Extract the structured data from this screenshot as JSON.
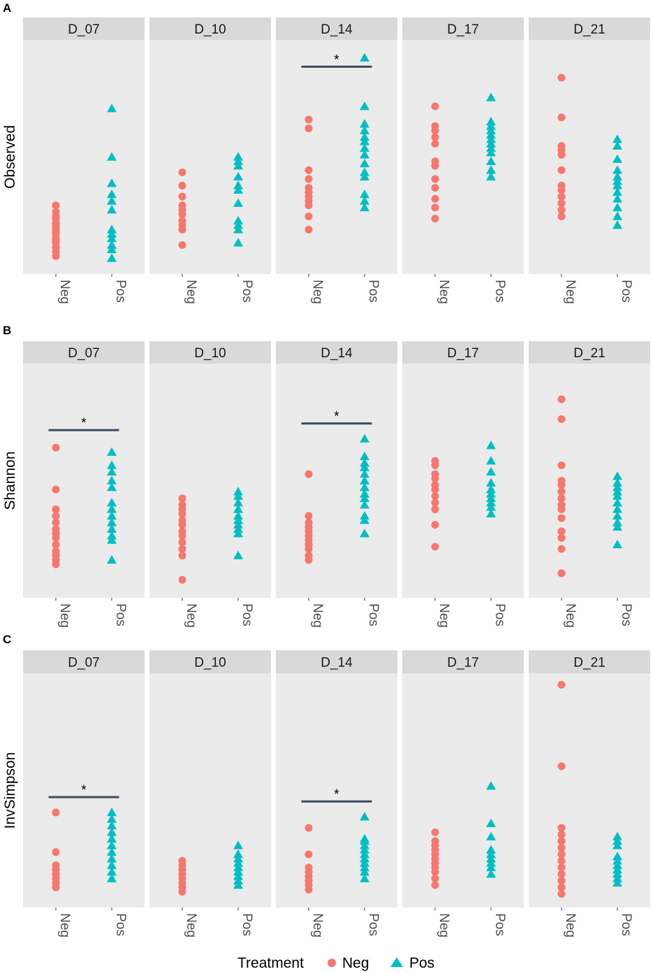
{
  "chart_data": {
    "type": "scatter",
    "groups": [
      "Neg",
      "Pos"
    ],
    "colors": {
      "Neg": "#F8766D",
      "Pos": "#00BFC4"
    },
    "legend": {
      "title": "Treatment",
      "entries": [
        "Neg",
        "Pos"
      ],
      "position": "bottom"
    },
    "facets": [
      "D_07",
      "D_10",
      "D_14",
      "D_17",
      "D_21"
    ],
    "rows": [
      {
        "label": "A",
        "ylabel": "Observed",
        "ylim": [
          0,
          100
        ],
        "significance": [
          {
            "facet": "D_14",
            "label": "*",
            "y": 91
          }
        ],
        "values": {
          "D_07": {
            "Neg": [
              28,
              25,
              23,
              22,
              20,
              19,
              18,
              17,
              16,
              15,
              13,
              12,
              11,
              9,
              7,
              5
            ],
            "Pos": [
              72,
              50,
              38,
              33,
              30,
              26,
              17,
              15,
              13,
              10,
              8,
              4
            ]
          },
          "D_10": {
            "Neg": [
              43,
              37,
              32,
              28,
              26,
              24,
              21,
              19,
              17,
              10
            ],
            "Pos": [
              50,
              48,
              46,
              41,
              37,
              35,
              29,
              21,
              19,
              17,
              11
            ]
          },
          "D_14": {
            "Neg": [
              67,
              63,
              44,
              40,
              36,
              34,
              32,
              30,
              28,
              23,
              17
            ],
            "Pos": [
              95,
              73,
              65,
              62,
              59,
              57,
              54,
              51,
              47,
              43,
              41,
              33,
              30,
              27
            ]
          },
          "D_17": {
            "Neg": [
              73,
              64,
              62,
              59,
              56,
              48,
              46,
              40,
              36,
              31,
              27,
              22
            ],
            "Pos": [
              77,
              66,
              64,
              62,
              60,
              58,
              56,
              54,
              52,
              48,
              44,
              41
            ]
          },
          "D_21": {
            "Neg": [
              86,
              68,
              55,
              53,
              51,
              44,
              37,
              35,
              32,
              29,
              26,
              23
            ],
            "Pos": [
              58,
              55,
              49,
              44,
              41,
              39,
              37,
              34,
              31,
              27,
              23,
              19
            ]
          }
        }
      },
      {
        "label": "B",
        "ylabel": "Shannon",
        "ylim": [
          0,
          100
        ],
        "significance": [
          {
            "facet": "D_07",
            "label": "*",
            "y": 73
          },
          {
            "facet": "D_14",
            "label": "*",
            "y": 76
          }
        ],
        "values": {
          "D_07": {
            "Neg": [
              65,
              46,
              37,
              34,
              31,
              28,
              26,
              24,
              21,
              18,
              16,
              14,
              12
            ],
            "Pos": [
              63,
              57,
              54,
              50,
              47,
              40,
              37,
              34,
              31,
              28,
              25,
              23,
              14
            ]
          },
          "D_10": {
            "Neg": [
              42,
              39,
              37,
              35,
              32,
              30,
              27,
              25,
              22,
              19,
              16,
              5
            ],
            "Pos": [
              45,
              43,
              40,
              37,
              34,
              32,
              30,
              28,
              26,
              16
            ]
          },
          "D_14": {
            "Neg": [
              53,
              34,
              31,
              29,
              27,
              25,
              23,
              21,
              19,
              16,
              14
            ],
            "Pos": [
              69,
              61,
              58,
              56,
              53,
              50,
              47,
              44,
              42,
              39,
              34,
              32,
              26
            ]
          },
          "D_17": {
            "Neg": [
              59,
              57,
              53,
              51,
              48,
              46,
              43,
              40,
              37,
              30,
              20
            ],
            "Pos": [
              66,
              59,
              54,
              49,
              46,
              44,
              42,
              40,
              38,
              35
            ]
          },
          "D_21": {
            "Neg": [
              87,
              78,
              57,
              50,
              48,
              45,
              42,
              39,
              37,
              33,
              27,
              24,
              19,
              8
            ],
            "Pos": [
              52,
              49,
              47,
              45,
              43,
              40,
              37,
              34,
              31,
              29,
              21
            ]
          }
        }
      },
      {
        "label": "C",
        "ylabel": "InvSimpson",
        "ylim": [
          0,
          100
        ],
        "significance": [
          {
            "facet": "D_07",
            "label": "*",
            "y": 47
          },
          {
            "facet": "D_14",
            "label": "*",
            "y": 45
          }
        ],
        "values": {
          "D_07": {
            "Neg": [
              40,
              22,
              16,
              14,
              12,
              10,
              8,
              6
            ],
            "Pos": [
              40,
              37,
              34,
              31,
              28,
              25,
              22,
              19,
              16,
              13,
              10
            ]
          },
          "D_10": {
            "Neg": [
              18,
              16,
              14,
              12,
              10,
              8,
              6,
              4
            ],
            "Pos": [
              25,
              21,
              19,
              17,
              15,
              13,
              11,
              9,
              7
            ]
          },
          "D_14": {
            "Neg": [
              33,
              21,
              15,
              13,
              11,
              9,
              7,
              5
            ],
            "Pos": [
              38,
              28,
              27,
              25,
              23,
              21,
              19,
              17,
              15,
              13,
              10
            ]
          },
          "D_17": {
            "Neg": [
              31,
              27,
              25,
              23,
              21,
              19,
              17,
              15,
              13,
              10,
              7
            ],
            "Pos": [
              52,
              35,
              29,
              23,
              21,
              19,
              17,
              15,
              12
            ]
          },
          "D_21": {
            "Neg": [
              98,
              61,
              33,
              30,
              27,
              24,
              21,
              18,
              15,
              12,
              9,
              6,
              3
            ],
            "Pos": [
              29,
              27,
              25,
              20,
              18,
              16,
              14,
              12,
              10,
              8
            ]
          }
        }
      }
    ]
  }
}
